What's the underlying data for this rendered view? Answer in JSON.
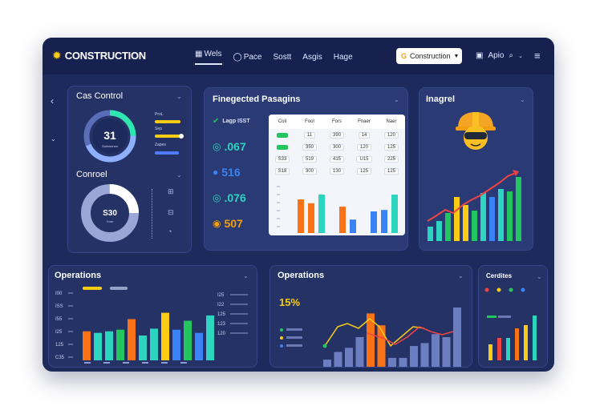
{
  "app": {
    "title": "CONSTRUCTION"
  },
  "nav": {
    "items": [
      {
        "label": "Wels",
        "icon": "calendar-icon"
      },
      {
        "label": "Pace",
        "icon": "chat-icon"
      },
      {
        "label": "Sostt"
      },
      {
        "label": "Asgis"
      },
      {
        "label": "Hage"
      }
    ]
  },
  "header": {
    "dropdown_label": "Construction",
    "apps_label": "Apio"
  },
  "cost_card": {
    "title": "Cas Control",
    "donut_value": "31",
    "donut_caption": "Sallolurnan",
    "labels": [
      "ProL",
      "Sep",
      "Zapes"
    ],
    "bars": [
      0.85,
      0.9,
      0.75
    ]
  },
  "control_card": {
    "title": "Conroel",
    "donut_value": "S30",
    "donut_caption": "Tomr",
    "donut_fraction": 0.25
  },
  "integrated_card": {
    "title": "Finegected Pasagins",
    "kpis": [
      {
        "value": "Lagp ISST",
        "icon": "check-circle-icon",
        "color": "#22c55e"
      },
      {
        "value": ".067",
        "icon": "globe-icon",
        "color": "#2dd4bf"
      },
      {
        "value": "516",
        "icon": "drop-icon",
        "color": "#3b82f6"
      },
      {
        "value": ".076",
        "icon": "globe-icon",
        "color": "#2dd4bf"
      },
      {
        "value": "507",
        "icon": "coin-icon",
        "color": "#f59e0b"
      }
    ],
    "table": {
      "headers": [
        "Coil",
        "Fool",
        "Fors",
        "Fnaer",
        "Naer"
      ],
      "rows": [
        [
          "",
          "11",
          "390",
          "14",
          "120"
        ],
        [
          "",
          "350",
          "300",
          "120",
          "125"
        ],
        [
          "S33",
          "519",
          "415",
          "U15",
          "225"
        ],
        [
          "S18",
          "300",
          "130",
          "125",
          "125"
        ]
      ]
    }
  },
  "inspect_card": {
    "title": "Inagrel"
  },
  "ops_left": {
    "title": "Operations",
    "ylabels": [
      "I00",
      "ISS",
      "I55",
      "I25",
      "125",
      "C35"
    ],
    "right_labels": [
      "I25",
      "I22",
      "125",
      "123",
      "120"
    ]
  },
  "ops_mid": {
    "title": "Operations",
    "kpi": "15%"
  },
  "cards_right": {
    "title": "Cerdites"
  }
}
